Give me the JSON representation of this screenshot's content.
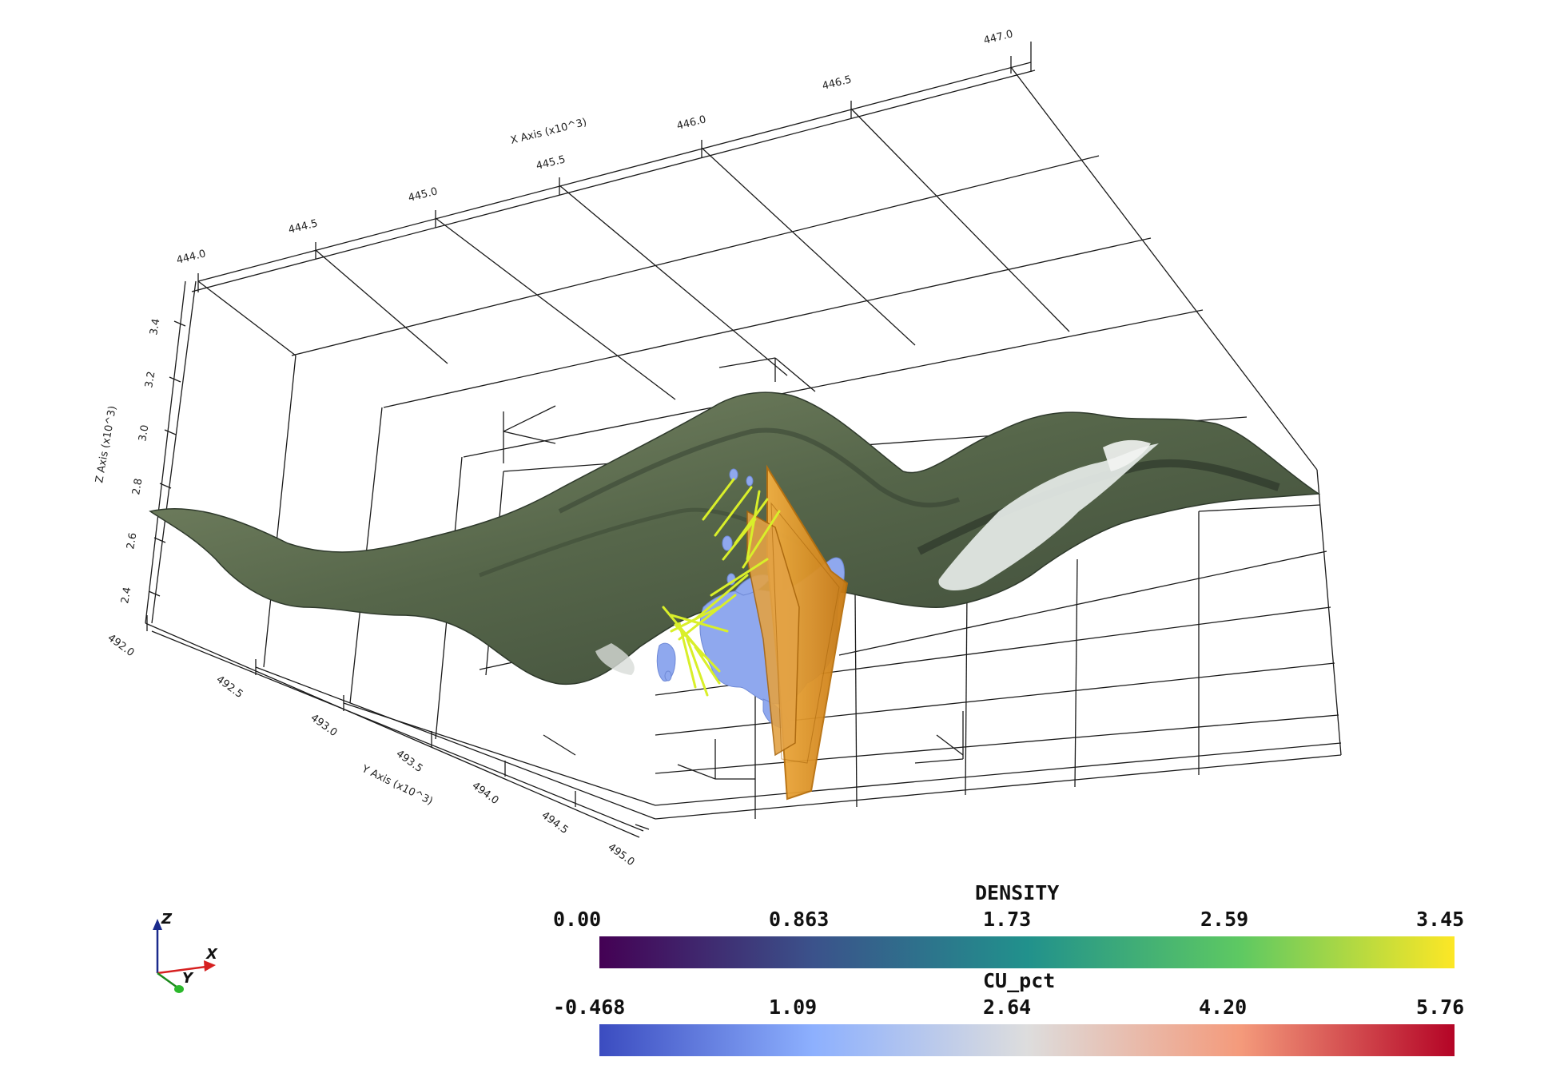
{
  "axes": {
    "x": {
      "title": "X Axis (x10^3)",
      "ticks": [
        "444.0",
        "444.5",
        "445.0",
        "445.5",
        "446.0",
        "446.5",
        "447.0"
      ]
    },
    "y": {
      "title": "Y Axis (x10^3)",
      "ticks": [
        "492.0",
        "492.5",
        "493.0",
        "493.5",
        "494.0",
        "494.5",
        "495.0"
      ]
    },
    "z": {
      "title": "Z Axis (x10^3)",
      "ticks": [
        "2.4",
        "2.6",
        "2.8",
        "3.0",
        "3.2",
        "3.4"
      ]
    }
  },
  "colorbars": {
    "density": {
      "title": "DENSITY",
      "ticks": [
        "0.00",
        "0.863",
        "1.73",
        "2.59",
        "3.45"
      ],
      "colors": [
        "#440154",
        "#3b528b",
        "#21918c",
        "#5ec962",
        "#fde725"
      ]
    },
    "cu_pct": {
      "title": "CU_pct",
      "ticks": [
        "-0.468",
        "1.09",
        "2.64",
        "4.20",
        "5.76"
      ],
      "colors": [
        "#3b4cc0",
        "#8db0fe",
        "#dddddd",
        "#f49a7b",
        "#b40426"
      ]
    }
  },
  "orientation": {
    "z": "Z",
    "x": "X",
    "y": "Y"
  },
  "colors": {
    "terrain": "#5e6e4e",
    "terrain_dark": "#2f3a2c",
    "snow": "#e8ece9",
    "ore_body": "#8fa8ee",
    "fault": "#e59a2a",
    "drillhole": "#d9ef2a",
    "grid": "#1a1a1a"
  }
}
